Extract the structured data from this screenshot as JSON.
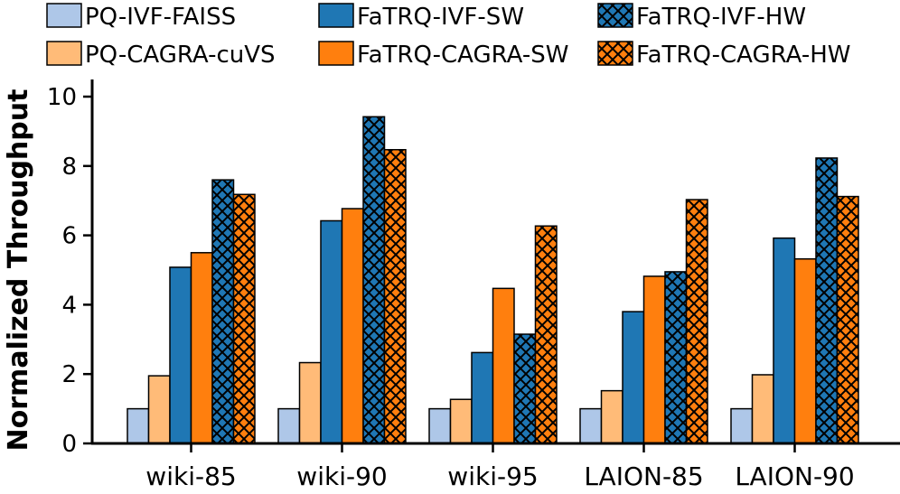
{
  "chart_data": {
    "type": "bar",
    "title": "",
    "xlabel": "",
    "ylabel": "Normalized Throughput",
    "ylim": [
      0,
      10.5
    ],
    "yticks": [
      0,
      2,
      4,
      6,
      8,
      10
    ],
    "ytick_labels": [
      "0",
      "2",
      "4",
      "6",
      "8",
      "10"
    ],
    "grid": false,
    "legend_position": "top",
    "categories": [
      "wiki-85",
      "wiki-90",
      "wiki-95",
      "LAION-85",
      "LAION-90"
    ],
    "series": [
      {
        "name": "PQ-IVF-FAISS",
        "color": "#aec7e8",
        "hatch": false,
        "values": [
          1.0,
          1.0,
          1.0,
          1.0,
          1.0
        ]
      },
      {
        "name": "PQ-CAGRA-cuVS",
        "color": "#ffbb78",
        "hatch": false,
        "values": [
          1.95,
          2.33,
          1.27,
          1.52,
          1.98
        ]
      },
      {
        "name": "FaTRQ-IVF-SW",
        "color": "#1f77b4",
        "hatch": false,
        "values": [
          5.08,
          6.42,
          2.62,
          3.8,
          5.92
        ]
      },
      {
        "name": "FaTRQ-CAGRA-SW",
        "color": "#ff7f0e",
        "hatch": false,
        "values": [
          5.5,
          6.77,
          4.47,
          4.82,
          5.32
        ]
      },
      {
        "name": "FaTRQ-IVF-HW",
        "color": "#1f77b4",
        "hatch": true,
        "values": [
          7.6,
          9.42,
          3.15,
          4.95,
          8.23
        ]
      },
      {
        "name": "FaTRQ-CAGRA-HW",
        "color": "#ff7f0e",
        "hatch": true,
        "values": [
          7.18,
          8.47,
          6.27,
          7.03,
          7.12
        ]
      }
    ]
  }
}
